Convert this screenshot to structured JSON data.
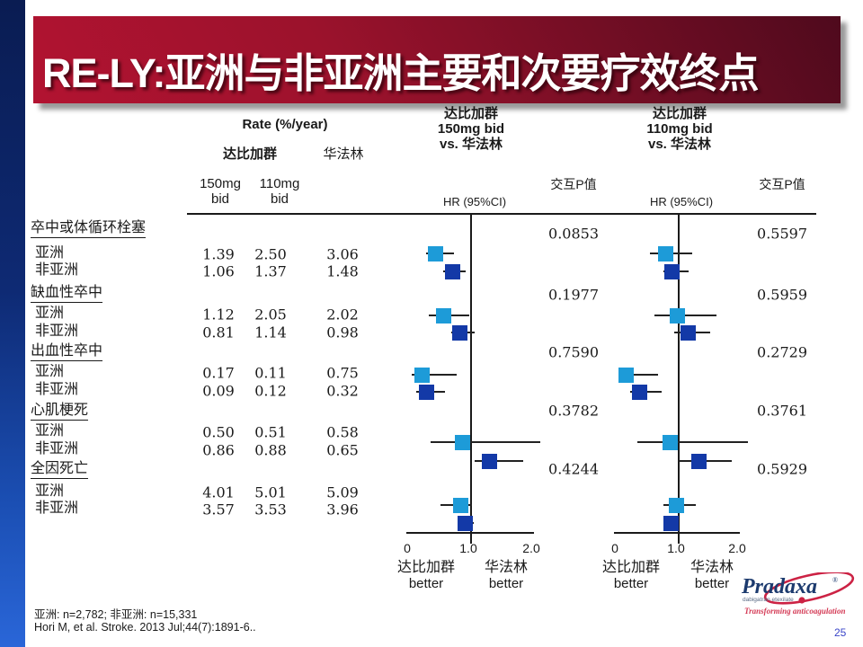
{
  "slide": {
    "title": "RE-LY:亚洲与非亚洲主要和次要疗效终点",
    "page_number": "25",
    "footnote_line1": "亚洲: n=2,782; 非亚洲: n=15,331",
    "footnote_line2": "Hori M, et al. Stroke. 2013 Jul;44(7):1891-6.."
  },
  "header": {
    "rate": "Rate (%/year)",
    "dabigatran": "达比加群",
    "warfarin": "华法林",
    "dose150_line1": "150mg",
    "dose150_line2": "bid",
    "dose110_line1": "110mg",
    "dose110_line2": "bid",
    "plot1_line1": "达比加群",
    "plot1_line2": "150mg bid",
    "plot1_line3": "vs. 华法林",
    "plot2_line1": "达比加群",
    "plot2_line2": "110mg bid",
    "plot2_line3": "vs. 华法林",
    "hr_ci": "HR (95%CI)",
    "interaction_p1": "交互P值",
    "interaction_p2": "交互P值"
  },
  "axis": {
    "tick0": "0",
    "tick1": "1.0",
    "tick2": "2.0",
    "dabi_better_cn": "达比加群",
    "dabi_better_en": "better",
    "warf_better_cn": "华法林",
    "warf_better_en": "better"
  },
  "logo": {
    "brand": "Pradaxa",
    "registered": "®",
    "subtitle": "dabigatran etexilate",
    "tagline": "Transforming anticoagulation"
  },
  "chart_data": {
    "type": "forest",
    "x_range": [
      0,
      2
    ],
    "x_ticks": [
      0,
      1.0,
      2.0
    ],
    "reference_line": 1.0,
    "colors": {
      "asia": "#1d9bd8",
      "non_asia": "#1339a7"
    },
    "plots": [
      {
        "name": "达比加群 150mg bid vs. 华法林"
      },
      {
        "name": "达比加群 110mg bid vs. 华法林"
      }
    ],
    "rows": [
      {
        "kind": "category",
        "label": "卒中或体循环栓塞",
        "p_150": "0.0853",
        "p_110": "0.5597"
      },
      {
        "kind": "data",
        "group": "asia",
        "label": "亚洲",
        "rate_150": "1.39",
        "rate_110": "2.50",
        "rate_warfarin": "3.06",
        "hr_150": 0.45,
        "ci_150": [
          0.3,
          0.74
        ],
        "hr_110": 0.8,
        "ci_110": [
          0.55,
          1.22
        ]
      },
      {
        "kind": "data",
        "group": "non_asia",
        "label": "非亚洲",
        "rate_150": "1.06",
        "rate_110": "1.37",
        "rate_warfarin": "1.48",
        "hr_150": 0.71,
        "ci_150": [
          0.57,
          0.92
        ],
        "hr_110": 0.9,
        "ci_110": [
          0.76,
          1.17
        ]
      },
      {
        "kind": "category",
        "label": "缺血性卒中",
        "p_150": "0.1977",
        "p_110": "0.5959"
      },
      {
        "kind": "data",
        "group": "asia",
        "label": "亚洲",
        "rate_150": "1.12",
        "rate_110": "2.05",
        "rate_warfarin": "2.02",
        "hr_150": 0.57,
        "ci_150": [
          0.34,
          0.98
        ],
        "hr_110": 0.99,
        "ci_110": [
          0.62,
          1.6
        ]
      },
      {
        "kind": "data",
        "group": "non_asia",
        "label": "非亚洲",
        "rate_150": "0.81",
        "rate_110": "1.14",
        "rate_warfarin": "0.98",
        "hr_150": 0.83,
        "ci_150": [
          0.69,
          1.07
        ],
        "hr_110": 1.16,
        "ci_110": [
          0.93,
          1.5
        ]
      },
      {
        "kind": "category",
        "label": "出血性卒中",
        "p_150": "0.7590",
        "p_110": "0.2729"
      },
      {
        "kind": "data",
        "group": "asia",
        "label": "亚洲",
        "rate_150": "0.17",
        "rate_110": "0.11",
        "rate_warfarin": "0.75",
        "hr_150": 0.23,
        "ci_150": [
          0.07,
          0.78
        ],
        "hr_110": 0.18,
        "ci_110": [
          0.05,
          0.68
        ]
      },
      {
        "kind": "data",
        "group": "non_asia",
        "label": "非亚洲",
        "rate_150": "0.09",
        "rate_110": "0.12",
        "rate_warfarin": "0.32",
        "hr_150": 0.3,
        "ci_150": [
          0.14,
          0.6
        ],
        "hr_110": 0.39,
        "ci_110": [
          0.24,
          0.74
        ]
      },
      {
        "kind": "category",
        "label": "心肌梗死",
        "p_150": "0.3782",
        "p_110": "0.3761"
      },
      {
        "kind": "data",
        "group": "asia",
        "label": "亚洲",
        "rate_150": "0.50",
        "rate_110": "0.51",
        "rate_warfarin": "0.58",
        "hr_150": 0.87,
        "ci_150": [
          0.37,
          2.1
        ],
        "hr_110": 0.87,
        "ci_110": [
          0.36,
          2.1
        ]
      },
      {
        "kind": "data",
        "group": "non_asia",
        "label": "非亚洲",
        "rate_150": "0.86",
        "rate_110": "0.88",
        "rate_warfarin": "0.65",
        "hr_150": 1.3,
        "ci_150": [
          1.06,
          1.83
        ],
        "hr_110": 1.33,
        "ci_110": [
          1.0,
          1.85
        ]
      },
      {
        "kind": "category",
        "label": "全因死亡",
        "p_150": "0.4244",
        "p_110": "0.5929"
      },
      {
        "kind": "data",
        "group": "asia",
        "label": "亚洲",
        "rate_150": "4.01",
        "rate_110": "5.01",
        "rate_warfarin": "5.09",
        "hr_150": 0.84,
        "ci_150": [
          0.52,
          1.02
        ],
        "hr_110": 0.97,
        "ci_110": [
          0.76,
          1.28
        ]
      },
      {
        "kind": "data",
        "group": "non_asia",
        "label": "非亚洲",
        "rate_150": "3.57",
        "rate_110": "3.53",
        "rate_warfarin": "3.96",
        "hr_150": 0.91,
        "ci_150": [
          0.84,
          1.05
        ],
        "hr_110": 0.89,
        "ci_110": [
          0.79,
          0.99
        ]
      }
    ]
  }
}
